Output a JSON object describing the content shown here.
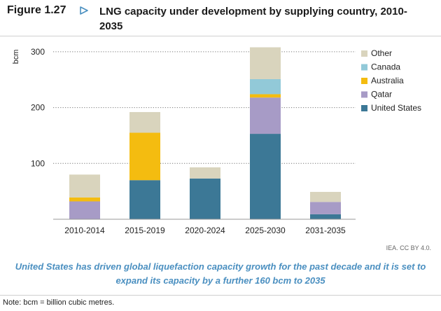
{
  "figure": {
    "label": "Figure 1.27",
    "title": "LNG capacity under development by supplying country, 2010-2035"
  },
  "chart_data": {
    "type": "bar",
    "stacked": true,
    "categories": [
      "2010-2014",
      "2015-2019",
      "2020-2024",
      "2025-2030",
      "2031-2035"
    ],
    "ylabel": "bcm",
    "ylim": [
      0,
      320
    ],
    "yticks": [
      100,
      200,
      300
    ],
    "grid": "horizontal dotted",
    "legend_position": "right",
    "series": [
      {
        "name": "United States",
        "color": "#3c7896",
        "values": [
          0,
          70,
          73,
          153,
          9
        ]
      },
      {
        "name": "Qatar",
        "color": "#a79bc6",
        "values": [
          32,
          0,
          0,
          65,
          22
        ]
      },
      {
        "name": "Australia",
        "color": "#f4bc10",
        "values": [
          7,
          85,
          0,
          6,
          0
        ]
      },
      {
        "name": "Canada",
        "color": "#92c9d8",
        "values": [
          0,
          0,
          0,
          27,
          0
        ]
      },
      {
        "name": "Other",
        "color": "#d9d4bd",
        "values": [
          41,
          37,
          20,
          57,
          18
        ]
      }
    ],
    "legend_order": [
      "Other",
      "Canada",
      "Australia",
      "Qatar",
      "United States"
    ]
  },
  "source": "IEA. CC BY 4.0.",
  "caption": "United States has driven global liquefaction capacity growth for the past decade and it is set to expand its capacity by a further 160 bcm to 2035",
  "note": "Note: bcm = billion cubic metres."
}
